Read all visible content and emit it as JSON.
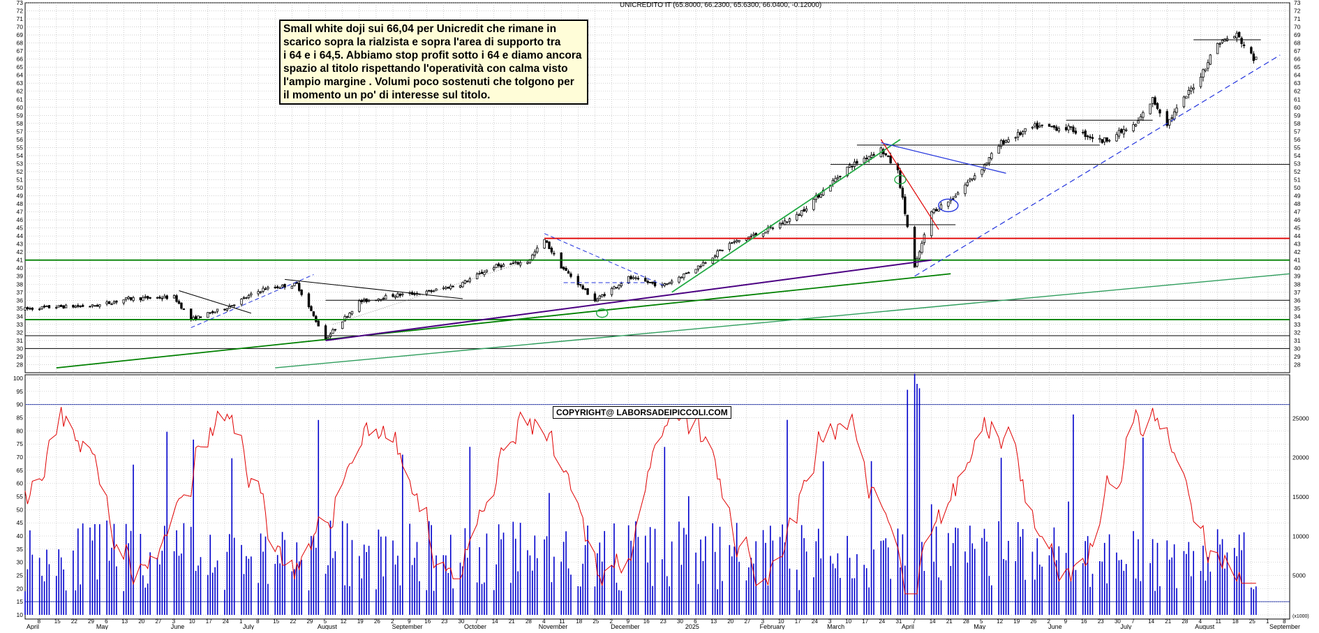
{
  "header": {
    "title": "UNICREDITO IT (65.8000, 66.2300, 65.6300, 66.0400, -0.12000)"
  },
  "annotation": {
    "lines": [
      "Small white doji sui 66,04 per Unicredit che  rimane in",
      "scarico sopra la rialzista e sopra l'area di supporto tra",
      "i 64 e i 64,5. Abbiamo stop profit sotto i 64 e diamo ancora",
      "spazio al titolo rispettando l'operatività con calma visto",
      "l'ampio margine . Volumi poco sostenuti che tolgono per",
      "il momento un po' di interesse sul titolo."
    ]
  },
  "copyright": "COPYRIGHT@ LABORSADEIPICCOLI.COM",
  "colors": {
    "candle": "#000000",
    "green_line": "#008000",
    "red_line": "#e00000",
    "blue_line": "#0000cc",
    "purple_line": "#4b0082",
    "rsi_line": "#e00000",
    "volume_bar": "#0000cc",
    "grid": "#b0b0b0"
  },
  "chart_data": [
    {
      "type": "candlestick",
      "title": "UNICREDITO IT (65.8000, 66.2300, 65.6300, 66.0400, -0.12000)",
      "ylim": [
        27,
        73
      ],
      "y_ticks": [
        28,
        29,
        30,
        31,
        32,
        33,
        34,
        35,
        36,
        37,
        38,
        39,
        40,
        41,
        42,
        43,
        44,
        45,
        46,
        47,
        48,
        49,
        50,
        51,
        52,
        53,
        54,
        55,
        56,
        57,
        58,
        59,
        60,
        61,
        62,
        63,
        64,
        65,
        66,
        67,
        68,
        69,
        70,
        71,
        72,
        73
      ],
      "last_ohlc": {
        "open": 65.8,
        "high": 66.23,
        "low": 65.63,
        "close": 66.04,
        "change": -0.12
      },
      "price_anchors": [
        [
          "2024-04-02",
          34.9
        ],
        [
          "2024-04-15",
          35.2
        ],
        [
          "2024-05-01",
          35.3
        ],
        [
          "2024-05-15",
          36.2
        ],
        [
          "2024-06-03",
          36.4
        ],
        [
          "2024-06-10",
          33.6
        ],
        [
          "2024-06-24",
          35.0
        ],
        [
          "2024-07-10",
          37.4
        ],
        [
          "2024-07-24",
          38.0
        ],
        [
          "2024-08-05",
          31.2
        ],
        [
          "2024-08-19",
          35.8
        ],
        [
          "2024-09-02",
          36.6
        ],
        [
          "2024-09-16",
          37.0
        ],
        [
          "2024-09-30",
          38.0
        ],
        [
          "2024-10-14",
          40.2
        ],
        [
          "2024-10-28",
          40.8
        ],
        [
          "2024-11-04",
          43.5
        ],
        [
          "2024-11-11",
          40.2
        ],
        [
          "2024-11-25",
          36.0
        ],
        [
          "2024-12-09",
          38.8
        ],
        [
          "2024-12-23",
          37.8
        ],
        [
          "2025-01-06",
          40.0
        ],
        [
          "2025-01-20",
          43.0
        ],
        [
          "2025-02-03",
          44.5
        ],
        [
          "2025-02-17",
          46.5
        ],
        [
          "2025-03-03",
          50.5
        ],
        [
          "2025-03-10",
          52.5
        ],
        [
          "2025-03-24",
          54.8
        ],
        [
          "2025-03-31",
          52.0
        ],
        [
          "2025-04-07",
          40.0
        ],
        [
          "2025-04-14",
          47.0
        ],
        [
          "2025-04-22",
          48.5
        ],
        [
          "2025-05-06",
          52.8
        ],
        [
          "2025-05-13",
          55.6
        ],
        [
          "2025-05-27",
          57.6
        ],
        [
          "2025-06-10",
          57.4
        ],
        [
          "2025-06-24",
          55.8
        ],
        [
          "2025-07-08",
          57.8
        ],
        [
          "2025-07-15",
          61.0
        ],
        [
          "2025-07-21",
          58.0
        ],
        [
          "2025-08-04",
          64.0
        ],
        [
          "2025-08-11",
          68.0
        ],
        [
          "2025-08-19",
          69.0
        ],
        [
          "2025-08-26",
          66.04
        ]
      ],
      "horizontal_levels": [
        {
          "value": 43.7,
          "color": "red",
          "from": "2024-11-04"
        },
        {
          "value": 41.0,
          "color": "green",
          "from": "2024-04-02"
        },
        {
          "value": 33.6,
          "color": "green",
          "from": "2024-04-02"
        },
        {
          "value": 36.0,
          "color": "black",
          "from": "2024-08-05"
        },
        {
          "value": 31.6,
          "color": "black",
          "from": "2024-04-02"
        },
        {
          "value": 30.0,
          "color": "black",
          "from": "2024-04-02"
        },
        {
          "value": 52.9,
          "color": "black",
          "from": "2025-03-03"
        },
        {
          "value": 45.4,
          "color": "black",
          "from": "2025-02-10",
          "to": "2025-04-24"
        },
        {
          "value": 55.3,
          "color": "black",
          "from": "2025-03-14",
          "to": "2025-06-23"
        },
        {
          "value": 58.4,
          "color": "black",
          "from": "2025-06-09",
          "to": "2025-07-15"
        },
        {
          "value": 68.4,
          "color": "black",
          "from": "2025-08-01",
          "to": "2025-08-29"
        }
      ]
    },
    {
      "type": "line+bar",
      "series": [
        {
          "kind": "oscillator",
          "ylim": [
            10,
            100
          ],
          "ticks": [
            10,
            15,
            20,
            25,
            30,
            35,
            40,
            45,
            50,
            55,
            60,
            65,
            70,
            75,
            80,
            85,
            90,
            95,
            100
          ],
          "upper_band": 90,
          "lower_band": 15,
          "last": 21
        },
        {
          "kind": "volume",
          "ticks": [
            5000,
            10000,
            15000,
            20000,
            25000
          ]
        }
      ],
      "volume_unit_label": "x1000"
    }
  ],
  "x_axis": {
    "months_2024": [
      "April",
      "May",
      "June",
      "July",
      "August",
      "September",
      "October",
      "November",
      "December"
    ],
    "months_2025": [
      "2025",
      "February",
      "March",
      "April",
      "May",
      "June",
      "July",
      "August",
      "September"
    ]
  }
}
